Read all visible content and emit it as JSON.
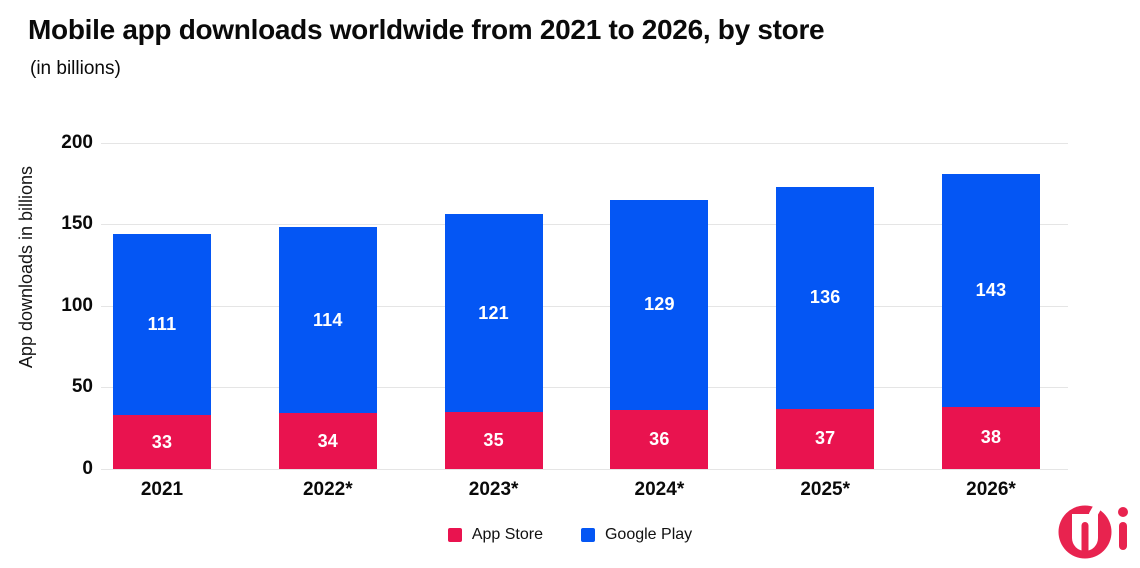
{
  "title": "Mobile app downloads worldwide from 2021 to 2026, by store",
  "subtitle": "(in billions)",
  "chart_data": {
    "type": "bar",
    "stacked": true,
    "title": "Mobile app downloads worldwide from 2021 to 2026, by store (in billions)",
    "categories": [
      "2021",
      "2022*",
      "2023*",
      "2024*",
      "2025*",
      "2026*"
    ],
    "series": [
      {
        "name": "App Store",
        "color": "#E9134F",
        "values": [
          33,
          34,
          35,
          36,
          37,
          38
        ]
      },
      {
        "name": "Google Play",
        "color": "#0456F4",
        "values": [
          111,
          114,
          121,
          129,
          136,
          143
        ]
      }
    ],
    "xlabel": "",
    "ylabel": "App downloads in billions",
    "yticks": [
      0,
      50,
      100,
      150,
      200
    ],
    "ylim": [
      0,
      200
    ],
    "grid": true,
    "value_labels": "inside segments, white bold",
    "legend_position": "bottom center"
  },
  "colors": {
    "app_store": "#E9134F",
    "google_play": "#0456F4",
    "gridline": "#e5e5e5",
    "text": "#0a0a0a",
    "logo": "#E8234F"
  },
  "logo": {
    "name": "mi-brand-logo"
  }
}
